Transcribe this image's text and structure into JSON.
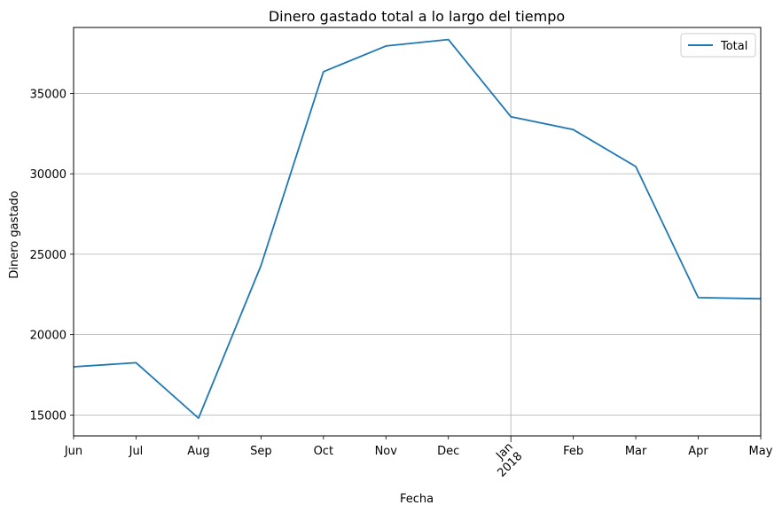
{
  "chart_data": {
    "type": "line",
    "title": "Dinero gastado total a lo largo del tiempo",
    "xlabel": "Fecha",
    "ylabel": "Dinero gastado",
    "x": [
      "2017-06",
      "2017-07",
      "2017-08",
      "2017-09",
      "2017-10",
      "2017-11",
      "2017-12",
      "2018-01",
      "2018-02",
      "2018-03",
      "2018-04",
      "2018-05"
    ],
    "x_tick_labels": [
      "Jun",
      "Jul",
      "Aug",
      "Sep",
      "Oct",
      "Nov",
      "Dec",
      "Jan\n2018",
      "Feb",
      "Mar",
      "Apr",
      "May"
    ],
    "series": [
      {
        "name": "Total",
        "color": "#1f77b4",
        "values": [
          18000,
          18250,
          14800,
          24300,
          36350,
          37950,
          38350,
          33550,
          32750,
          30450,
          22300,
          22230
        ]
      }
    ],
    "ylim": [
      13700,
      39100
    ],
    "y_ticks": [
      15000,
      20000,
      25000,
      30000,
      35000
    ],
    "grid": true,
    "legend_position": "top-right"
  }
}
